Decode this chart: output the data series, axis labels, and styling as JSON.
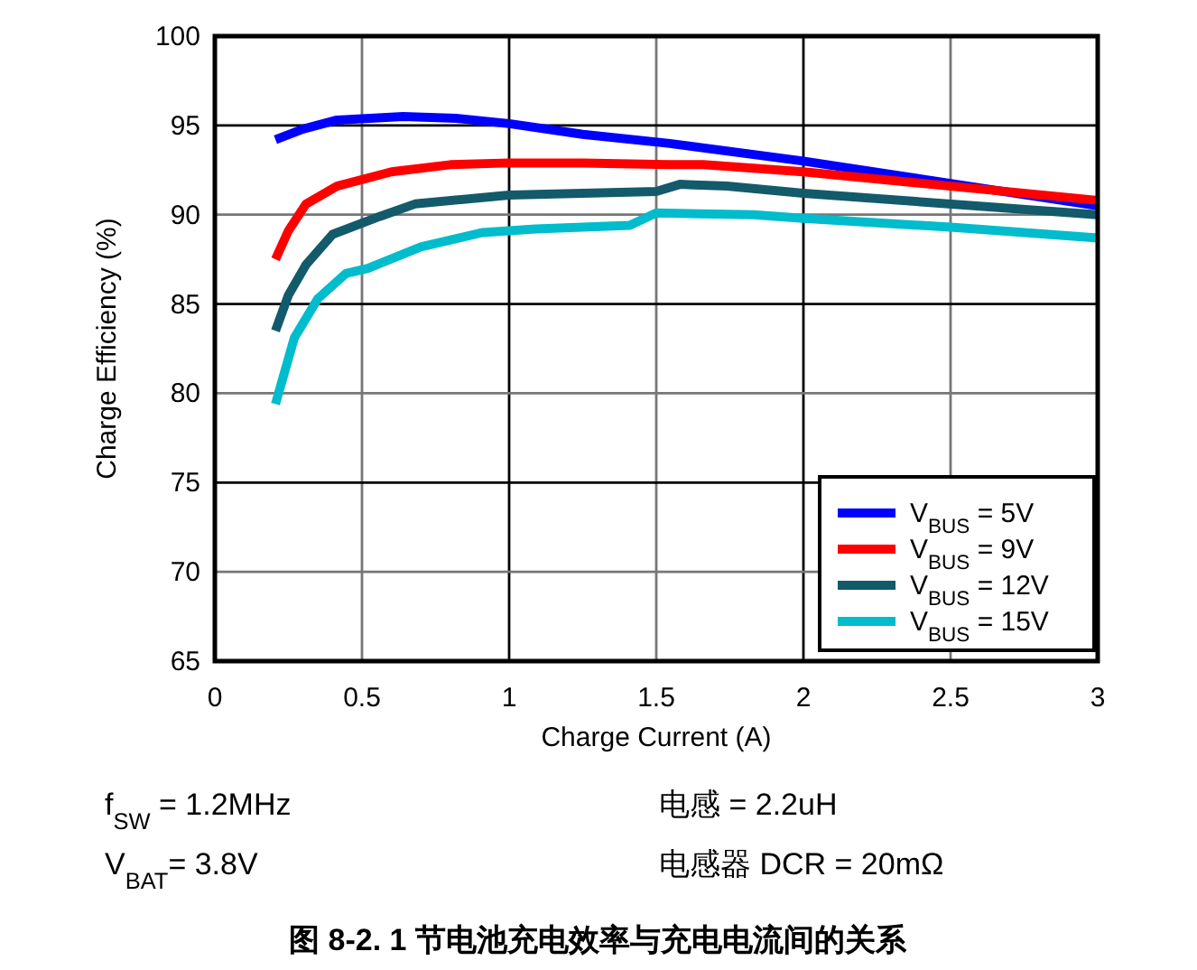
{
  "chart_data": {
    "type": "line",
    "title": "图 8-2. 1 节电池充电效率与充电电流间的关系",
    "xlabel": "Charge Current (A)",
    "ylabel": "Charge Efficiency (%)",
    "xlim": [
      0,
      3
    ],
    "xticks": [
      0,
      0.5,
      1,
      1.5,
      2,
      2.5,
      3
    ],
    "ylim": [
      65,
      100
    ],
    "yticks": [
      65,
      70,
      75,
      80,
      85,
      90,
      95,
      100
    ],
    "grid": true,
    "legend": "bottom right",
    "marker": "none",
    "line_style": "solid",
    "annotations": [
      "f$_{SW}$ = 1.2MHz",
      "V$_{BAT}$= 3.8V",
      "电感 = 2.2uH",
      "电感器 DCR = 20mΩ"
    ],
    "series": [
      {
        "name": "V$_{BUS}$ = 5V",
        "color": "#0000ff",
        "x": [
          0.206,
          0.3,
          0.415,
          0.64,
          0.82,
          1.0,
          1.25,
          1.54,
          2.0,
          3.0
        ],
        "values": [
          94.2,
          94.8,
          95.3,
          95.5,
          95.4,
          95.1,
          94.5,
          94.0,
          93.0,
          90.5
        ]
      },
      {
        "name": "V$_{BUS}$ = 9V",
        "color": "#ff0000",
        "x": [
          0.206,
          0.25,
          0.31,
          0.415,
          0.6,
          0.8,
          1.0,
          1.25,
          1.54,
          1.66,
          2.0,
          3.0
        ],
        "values": [
          87.5,
          89.1,
          90.6,
          91.6,
          92.4,
          92.8,
          92.9,
          92.9,
          92.8,
          92.8,
          92.4,
          90.8
        ]
      },
      {
        "name": "V$_{BUS}$ = 12V",
        "color": "#135a6b",
        "x": [
          0.206,
          0.25,
          0.31,
          0.4,
          0.56,
          0.68,
          1.0,
          1.5,
          1.58,
          1.74,
          2.0,
          3.0
        ],
        "values": [
          83.5,
          85.5,
          87.2,
          88.9,
          89.9,
          90.6,
          91.1,
          91.3,
          91.7,
          91.6,
          91.2,
          90.0
        ]
      },
      {
        "name": "V$_{BUS}$ = 15V",
        "color": "#00bccc",
        "x": [
          0.206,
          0.27,
          0.35,
          0.445,
          0.52,
          0.7,
          0.91,
          1.09,
          1.41,
          1.5,
          1.83,
          2.0,
          2.5,
          3.0
        ],
        "values": [
          79.4,
          83.1,
          85.3,
          86.7,
          87.0,
          88.2,
          89.0,
          89.2,
          89.4,
          90.1,
          90.0,
          89.8,
          89.3,
          88.7
        ]
      }
    ]
  }
}
